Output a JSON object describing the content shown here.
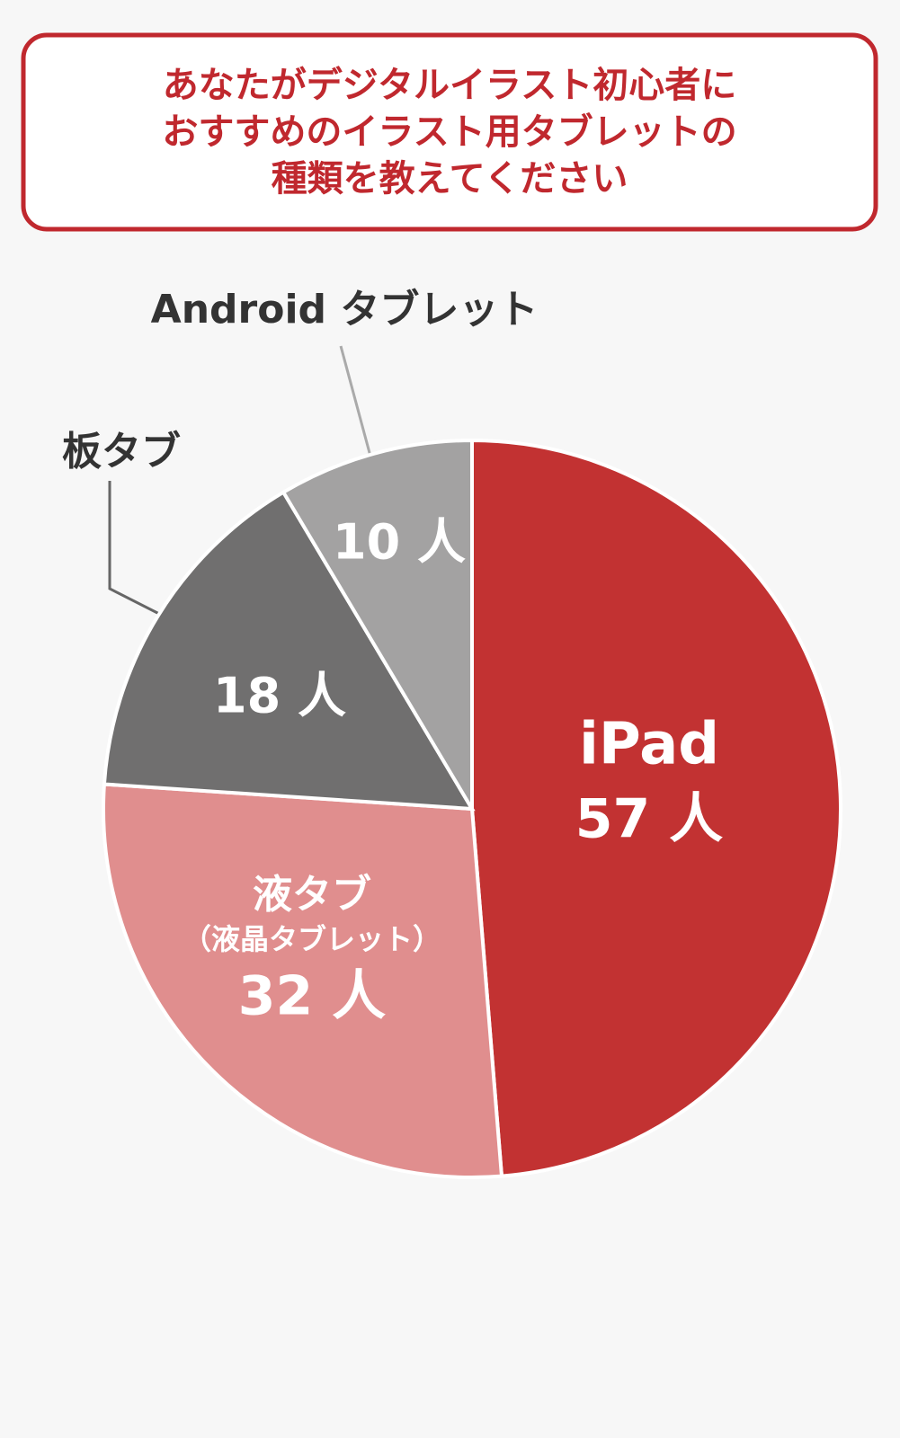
{
  "chart_data": {
    "type": "pie",
    "title": [
      "あなたがデジタルイラスト初心者に",
      "おすすめのイラスト用タブレットの",
      "種類を教えてください"
    ],
    "categories": [
      "iPad",
      "液タブ",
      "板タブ",
      "Android タブレット"
    ],
    "category_notes": [
      null,
      "（液晶タブレット）",
      null,
      null
    ],
    "values": [
      57,
      32,
      18,
      10
    ],
    "value_labels": [
      "57 人",
      "32 人",
      "18 人",
      "10 人"
    ],
    "colors": [
      "#c23232",
      "#e08e8e",
      "#706f6f",
      "#a3a2a2"
    ]
  }
}
